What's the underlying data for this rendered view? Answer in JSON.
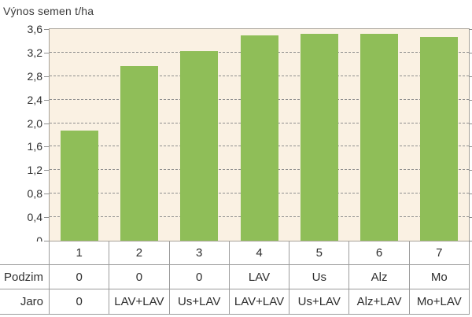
{
  "chart_data": {
    "type": "bar",
    "title": "Výnos semen t/ha",
    "xlabel": "",
    "ylabel": "Výnos semen t/ha",
    "ylim": [
      0,
      3.6
    ],
    "ytick_step": 0.4,
    "ytick_labels": [
      "0",
      "0,4",
      "0,8",
      "1,2",
      "1,6",
      "2,0",
      "2,4",
      "2,8",
      "3,2",
      "3,6"
    ],
    "categories": [
      "1",
      "2",
      "3",
      "4",
      "5",
      "6",
      "7"
    ],
    "values": [
      1.87,
      2.97,
      3.23,
      3.49,
      3.52,
      3.52,
      3.46
    ],
    "grid": "horizontal-dashed",
    "legend": "none",
    "bar_color": "#8FBE58",
    "plot_background": "#FAF1E3"
  },
  "colors": {
    "bar": "#8FBE58",
    "plot_bg": "#FAF1E3",
    "plot_border": "#A7A299",
    "gridline": "#8F8F8F",
    "table_border": "#9C9C9C",
    "text": "#2E2E2E"
  },
  "table": {
    "rows": [
      {
        "label": "",
        "cells": [
          "1",
          "2",
          "3",
          "4",
          "5",
          "6",
          "7"
        ]
      },
      {
        "label": "Podzim",
        "cells": [
          "0",
          "0",
          "0",
          "LAV",
          "Us",
          "Alz",
          "Mo"
        ]
      },
      {
        "label": "Jaro",
        "cells": [
          "0",
          "LAV+LAV",
          "Us+LAV",
          "LAV+LAV",
          "Us+LAV",
          "Alz+LAV",
          "Mo+LAV"
        ]
      }
    ]
  }
}
